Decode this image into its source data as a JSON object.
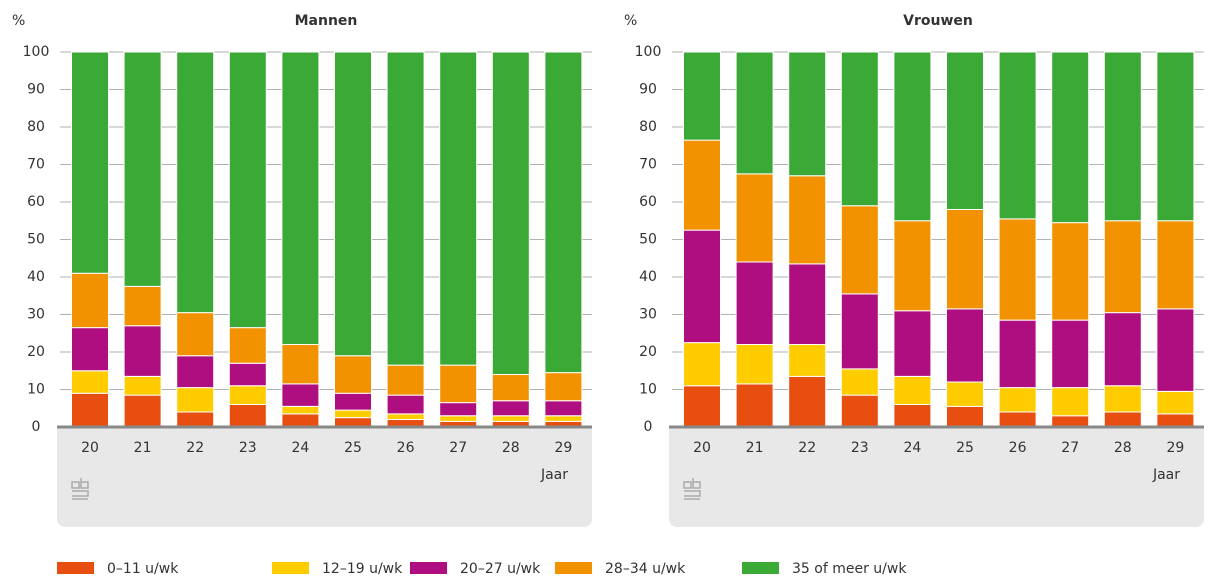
{
  "legend": [
    {
      "name": "0–11 u/wk",
      "color": "#e84e10"
    },
    {
      "name": "12–19 u/wk",
      "color": "#ffcc00"
    },
    {
      "name": "20–27 u/wk",
      "color": "#af0e80"
    },
    {
      "name": "28–34 u/wk",
      "color": "#f39200"
    },
    {
      "name": "35 of meer u/wk",
      "color": "#3aa935"
    }
  ],
  "chart_data": [
    {
      "type": "bar",
      "stacked": true,
      "title": "Mannen",
      "y_label": "%",
      "x_label": "Jaar",
      "categories": [
        "20",
        "21",
        "22",
        "23",
        "24",
        "25",
        "26",
        "27",
        "28",
        "29"
      ],
      "series": [
        {
          "values": [
            9,
            8.5,
            4,
            6,
            3.5,
            2.5,
            2,
            1.5,
            1.5,
            1.5
          ]
        },
        {
          "values": [
            6,
            5,
            6.5,
            5,
            2,
            2,
            1.5,
            1.5,
            1.5,
            1.5
          ]
        },
        {
          "values": [
            11.5,
            13.5,
            8.5,
            6,
            6,
            4.5,
            5,
            3.5,
            4,
            4
          ]
        },
        {
          "values": [
            14.5,
            10.5,
            11.5,
            9.5,
            10.5,
            10,
            8,
            10,
            7,
            7.5
          ]
        },
        {
          "values": [
            59,
            62.5,
            69.5,
            73.5,
            78,
            81,
            83.5,
            83.5,
            86,
            85.5
          ]
        }
      ],
      "ylim": [
        0,
        100
      ],
      "yticks": [
        0,
        10,
        20,
        30,
        40,
        50,
        60,
        70,
        80,
        90,
        100
      ],
      "grid": true
    },
    {
      "type": "bar",
      "stacked": true,
      "title": "Vrouwen",
      "y_label": "%",
      "x_label": "Jaar",
      "categories": [
        "20",
        "21",
        "22",
        "23",
        "24",
        "25",
        "26",
        "27",
        "28",
        "29"
      ],
      "series": [
        {
          "values": [
            11,
            11.5,
            13.5,
            8.5,
            6,
            5.5,
            4,
            3,
            4,
            3.5
          ]
        },
        {
          "values": [
            11.5,
            10.5,
            8.5,
            7,
            7.5,
            6.5,
            6.5,
            7.5,
            7,
            6
          ]
        },
        {
          "values": [
            30,
            22,
            21.5,
            20,
            17.5,
            19.5,
            18,
            18,
            19.5,
            22
          ]
        },
        {
          "values": [
            24,
            23.5,
            23.5,
            23.5,
            24,
            26.5,
            27,
            26,
            24.5,
            23.5
          ]
        },
        {
          "values": [
            23.5,
            32.5,
            33,
            41,
            45,
            42,
            44.5,
            45.5,
            45,
            45
          ]
        }
      ],
      "ylim": [
        0,
        100
      ],
      "yticks": [
        0,
        10,
        20,
        30,
        40,
        50,
        60,
        70,
        80,
        90,
        100
      ],
      "grid": true
    }
  ]
}
